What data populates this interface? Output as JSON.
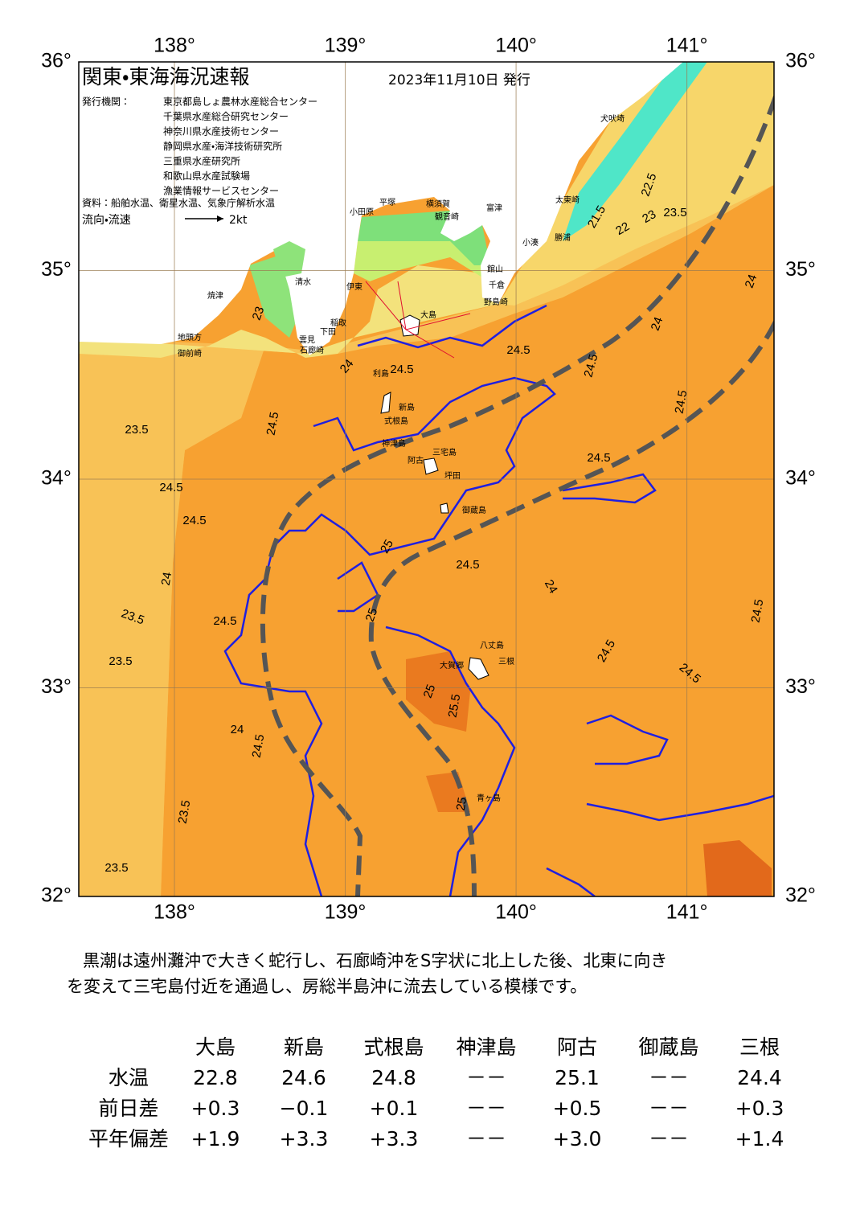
{
  "map": {
    "title": "関東・東海海況速報",
    "date": "2023年11月10日 発行",
    "agencies_label": "発行機関：",
    "agencies": [
      "東京都島しょ農林水産総合センター",
      "千葉県水産総合研究センター",
      "神奈川県水産技術センター",
      "静岡県水産・海洋技術研究所",
      "三重県水産研究所",
      "和歌山県水産試験場",
      "漁業情報サービスセンター"
    ],
    "source": "資料：船舶水温、衛星水温、気象庁解析水温",
    "legend": "流向・流速",
    "legend_unit": "2kt",
    "xlim": [
      137.44,
      141.51
    ],
    "ylim": [
      32,
      36
    ],
    "xticks": [
      {
        "value": 138,
        "label": "138°"
      },
      {
        "value": 139,
        "label": "139°"
      },
      {
        "value": 140,
        "label": "140°"
      },
      {
        "value": 141,
        "label": "141°"
      }
    ],
    "yticks": [
      {
        "value": 32,
        "label": "32°"
      },
      {
        "value": 33,
        "label": "33°"
      },
      {
        "value": 34,
        "label": "34°"
      },
      {
        "value": 35,
        "label": "35°"
      },
      {
        "value": 36,
        "label": "36°"
      }
    ],
    "places": [
      "大島",
      "利島",
      "新島",
      "式根島",
      "神津島",
      "三宅島",
      "阿古",
      "坪田",
      "御蔵島",
      "八丈島",
      "三根",
      "大賀郷",
      "青ヶ島",
      "犬吠埼",
      "太東崎",
      "勝浦",
      "小湊",
      "野島崎",
      "千倉",
      "館山",
      "富津",
      "横須賀",
      "観音崎",
      "平塚",
      "小田原",
      "伊東",
      "稲取",
      "下田",
      "雲見",
      "石廊崎",
      "清水",
      "焼津",
      "地頭方",
      "御前崎"
    ],
    "contour_labels": [
      24.5,
      24.5,
      24.5,
      24.5,
      24.5,
      24.5,
      24.5,
      24.5,
      24.5,
      24.5,
      23.5,
      23.5,
      23.5,
      23.5,
      23.5,
      23.5,
      23,
      22,
      21.5,
      22.5,
      24,
      24,
      24,
      24,
      24,
      24.5,
      24.5,
      24.5,
      25,
      25,
      25.5,
      25,
      24.5,
      24,
      23,
      25
    ]
  },
  "description": [
    "黒潮は遠州灘沖で大きく蛇行し、石廊崎沖をS字状に北上した後、北東に向き",
    "を変えて三宅島付近を通過し、房総半島沖に流去している模様です。"
  ],
  "table": {
    "header": [
      "大島",
      "新島",
      "式根島",
      "神津島",
      "阿古",
      "御蔵島",
      "三根"
    ],
    "rows": [
      [
        "水温",
        "22.8",
        "24.6",
        "24.8",
        "－－",
        "25.1",
        "－－",
        "24.4"
      ],
      [
        "前日差",
        "+0.3",
        "−0.1",
        "+0.1",
        "－－",
        "+0.5",
        "－－",
        "+0.3"
      ],
      [
        "平年偏差",
        "+1.9",
        "+3.3",
        "+3.3",
        "－－",
        "+3.0",
        "－－",
        "+1.4"
      ]
    ]
  }
}
